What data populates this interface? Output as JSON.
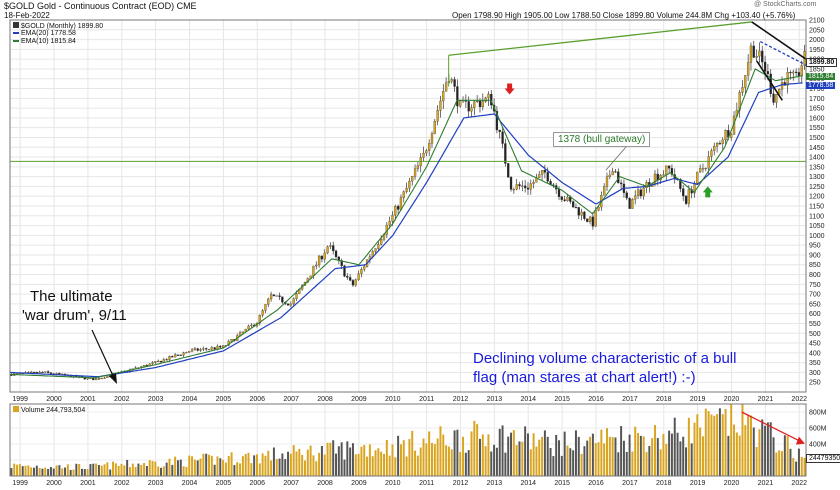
{
  "header": {
    "symbol_line": "$GOLD Gold - Continuous Contract (EOD) CME",
    "date": "18-Feb-2022",
    "ohlc": "Open 1798.90  High 1905.00  Low 1788.50  Close 1899.80  Volume 244.8M  Chg +103.40 (+5.76%)",
    "watermark": "@ StockCharts.com"
  },
  "legend": {
    "price": "$GOLD (Monthly) 1899.80",
    "ema20": "EMA(20) 1778.58",
    "ema10": "EMA(10) 1815.84",
    "volume": "Volume 244,793,504"
  },
  "annotations": {
    "war_drum_1": "The ultimate",
    "war_drum_2": "'war drum', 9/11",
    "gateway": "1378 (bull gateway)",
    "volume_note_1": "Declining volume characteristic of a bull",
    "volume_note_2": "flag (man stares at chart alert!) :-)"
  },
  "price_badges": {
    "close": "1899.80",
    "ema10": "1815.84",
    "ema20": "1778.58"
  },
  "volume_badge": "244793504",
  "colors": {
    "up_bar": "#d9a520",
    "down_bar": "#222222",
    "ema10": "#2e7d32",
    "ema20": "#1f3fbf",
    "trend": "#5aa02c",
    "annotation_blue": "#1a1adc",
    "red_arrow": "#e02020",
    "green_arrow": "#2aa02a"
  },
  "chart_data": {
    "type": "candlestick",
    "title": "$GOLD Gold - Continuous Contract (EOD) CME",
    "period": "Monthly",
    "price_axis": {
      "ylim": [
        200,
        2100
      ],
      "ticks": [
        250,
        300,
        350,
        400,
        450,
        500,
        550,
        600,
        650,
        700,
        750,
        800,
        850,
        900,
        950,
        1000,
        1050,
        1100,
        1150,
        1200,
        1250,
        1300,
        1350,
        1400,
        1450,
        1500,
        1550,
        1600,
        1650,
        1700,
        1750,
        1800,
        1850,
        1900,
        1950,
        2000,
        2050,
        2100
      ]
    },
    "x_axis": {
      "xlim": [
        1998.7,
        2022.2
      ],
      "ticks": [
        "1999",
        "2000",
        "2001",
        "2002",
        "2003",
        "2004",
        "2005",
        "2006",
        "2007",
        "2008",
        "2009",
        "2010",
        "2011",
        "2012",
        "2013",
        "2014",
        "2015",
        "2016",
        "2017",
        "2018",
        "2019",
        "2020",
        "2021",
        "2022"
      ]
    },
    "price_anchors": [
      {
        "t": 1998.7,
        "v": 290
      },
      {
        "t": 1999.7,
        "v": 300
      },
      {
        "t": 2000.5,
        "v": 280
      },
      {
        "t": 2001.2,
        "v": 265
      },
      {
        "t": 2002.0,
        "v": 300
      },
      {
        "t": 2003.0,
        "v": 350
      },
      {
        "t": 2004.0,
        "v": 410
      },
      {
        "t": 2005.0,
        "v": 430
      },
      {
        "t": 2006.0,
        "v": 560
      },
      {
        "t": 2006.4,
        "v": 690
      },
      {
        "t": 2007.0,
        "v": 650
      },
      {
        "t": 2008.1,
        "v": 950
      },
      {
        "t": 2008.8,
        "v": 740
      },
      {
        "t": 2009.5,
        "v": 950
      },
      {
        "t": 2010.0,
        "v": 1100
      },
      {
        "t": 2010.9,
        "v": 1400
      },
      {
        "t": 2011.65,
        "v": 1830
      },
      {
        "t": 2012.0,
        "v": 1650
      },
      {
        "t": 2012.9,
        "v": 1700
      },
      {
        "t": 2013.5,
        "v": 1250
      },
      {
        "t": 2014.0,
        "v": 1250
      },
      {
        "t": 2014.5,
        "v": 1320
      },
      {
        "t": 2015.0,
        "v": 1200
      },
      {
        "t": 2015.9,
        "v": 1060
      },
      {
        "t": 2016.5,
        "v": 1360
      },
      {
        "t": 2016.95,
        "v": 1150
      },
      {
        "t": 2017.7,
        "v": 1300
      },
      {
        "t": 2018.2,
        "v": 1340
      },
      {
        "t": 2018.65,
        "v": 1180
      },
      {
        "t": 2019.0,
        "v": 1300
      },
      {
        "t": 2019.7,
        "v": 1500
      },
      {
        "t": 2020.0,
        "v": 1550
      },
      {
        "t": 2020.6,
        "v": 1970
      },
      {
        "t": 2021.0,
        "v": 1850
      },
      {
        "t": 2021.25,
        "v": 1700
      },
      {
        "t": 2021.6,
        "v": 1810
      },
      {
        "t": 2021.9,
        "v": 1790
      },
      {
        "t": 2022.12,
        "v": 1900
      }
    ],
    "ema10_anchors": [
      {
        "t": 1998.7,
        "v": 290
      },
      {
        "t": 2001.2,
        "v": 272
      },
      {
        "t": 2003.0,
        "v": 340
      },
      {
        "t": 2005.0,
        "v": 425
      },
      {
        "t": 2006.6,
        "v": 620
      },
      {
        "t": 2008.2,
        "v": 880
      },
      {
        "t": 2009.0,
        "v": 850
      },
      {
        "t": 2010.0,
        "v": 1060
      },
      {
        "t": 2011.0,
        "v": 1350
      },
      {
        "t": 2011.9,
        "v": 1690
      },
      {
        "t": 2012.9,
        "v": 1690
      },
      {
        "t": 2013.8,
        "v": 1330
      },
      {
        "t": 2015.0,
        "v": 1230
      },
      {
        "t": 2015.9,
        "v": 1110
      },
      {
        "t": 2016.7,
        "v": 1300
      },
      {
        "t": 2017.5,
        "v": 1250
      },
      {
        "t": 2018.2,
        "v": 1320
      },
      {
        "t": 2018.9,
        "v": 1220
      },
      {
        "t": 2019.8,
        "v": 1450
      },
      {
        "t": 2020.7,
        "v": 1850
      },
      {
        "t": 2021.3,
        "v": 1790
      },
      {
        "t": 2022.12,
        "v": 1816
      }
    ],
    "ema20_anchors": [
      {
        "t": 1998.7,
        "v": 300
      },
      {
        "t": 2001.3,
        "v": 278
      },
      {
        "t": 2003.0,
        "v": 325
      },
      {
        "t": 2005.0,
        "v": 410
      },
      {
        "t": 2006.7,
        "v": 580
      },
      {
        "t": 2008.3,
        "v": 830
      },
      {
        "t": 2009.2,
        "v": 850
      },
      {
        "t": 2010.0,
        "v": 1000
      },
      {
        "t": 2011.0,
        "v": 1270
      },
      {
        "t": 2012.1,
        "v": 1600
      },
      {
        "t": 2013.0,
        "v": 1620
      },
      {
        "t": 2014.0,
        "v": 1410
      },
      {
        "t": 2015.0,
        "v": 1270
      },
      {
        "t": 2016.0,
        "v": 1160
      },
      {
        "t": 2016.8,
        "v": 1240
      },
      {
        "t": 2017.5,
        "v": 1250
      },
      {
        "t": 2018.3,
        "v": 1290
      },
      {
        "t": 2019.0,
        "v": 1260
      },
      {
        "t": 2019.9,
        "v": 1400
      },
      {
        "t": 2020.8,
        "v": 1730
      },
      {
        "t": 2021.5,
        "v": 1770
      },
      {
        "t": 2022.12,
        "v": 1779
      }
    ],
    "horizontal_line": {
      "value": 1378,
      "label": "1378 (bull gateway)"
    },
    "trendlines": [
      {
        "name": "upper-trendline",
        "from": {
          "t": 2011.65,
          "v": 1920
        },
        "to": {
          "t": 2020.6,
          "v": 2090
        }
      },
      {
        "name": "flag-top",
        "from": {
          "t": 2020.6,
          "v": 2090
        },
        "to": {
          "t": 2022.2,
          "v": 1900
        }
      },
      {
        "name": "flag-bottom",
        "from": {
          "t": 2020.75,
          "v": 1890
        },
        "to": {
          "t": 2021.5,
          "v": 1690
        }
      },
      {
        "name": "flag-dashed",
        "from": {
          "t": 2020.85,
          "v": 1990
        },
        "to": {
          "t": 2022.2,
          "v": 1870
        }
      }
    ],
    "markers": [
      {
        "name": "red-down-arrow",
        "t": 2013.45,
        "v": 1730
      },
      {
        "name": "green-up-arrow",
        "t": 2019.3,
        "v": 1240
      }
    ],
    "volume": {
      "ylim": [
        0,
        900
      ],
      "unit": "M",
      "ticks": [
        200,
        400,
        600,
        800
      ],
      "tick_labels": [
        "200M",
        "400M",
        "600M",
        "800M"
      ],
      "anchors": [
        {
          "t": 1998.7,
          "v": 140
        },
        {
          "t": 2001.0,
          "v": 120
        },
        {
          "t": 2003.0,
          "v": 180
        },
        {
          "t": 2005.0,
          "v": 230
        },
        {
          "t": 2007.0,
          "v": 300
        },
        {
          "t": 2008.5,
          "v": 360
        },
        {
          "t": 2010.0,
          "v": 400
        },
        {
          "t": 2011.5,
          "v": 500
        },
        {
          "t": 2013.0,
          "v": 550
        },
        {
          "t": 2015.0,
          "v": 430
        },
        {
          "t": 2016.5,
          "v": 520
        },
        {
          "t": 2018.0,
          "v": 540
        },
        {
          "t": 2019.5,
          "v": 700
        },
        {
          "t": 2020.3,
          "v": 760
        },
        {
          "t": 2021.0,
          "v": 580
        },
        {
          "t": 2021.5,
          "v": 440
        },
        {
          "t": 2022.12,
          "v": 245
        }
      ],
      "trend_arrow": {
        "from": {
          "t": 2020.3,
          "v": 800
        },
        "to": {
          "t": 2022.05,
          "v": 430
        }
      }
    }
  }
}
